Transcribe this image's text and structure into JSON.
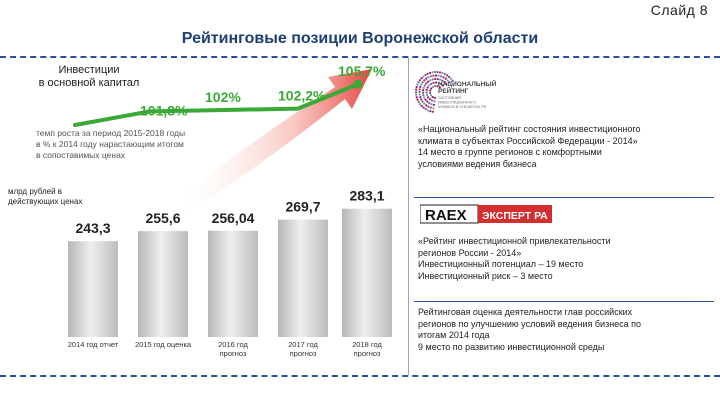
{
  "slide": {
    "number_label": "Слайд 8"
  },
  "title": "Рейтинговые позиции Воронежской области",
  "investment": {
    "label": "Инвестиции\nв основной капитал",
    "growth_note": "темп роста за период 2015-2018 годы\nв % к 2014 году нарастающим итогом\nв сопоставимых ценах",
    "unit_note": "млрд рублей        в\nдействующих ценах"
  },
  "chart_data": [
    {
      "type": "line",
      "categories": [
        "2015",
        "2016",
        "2017",
        "2018"
      ],
      "values": [
        101.8,
        102,
        102.2,
        105.7
      ],
      "value_labels": [
        "101,8%",
        "102%",
        "102,2%",
        "105,7%"
      ],
      "color": "#3aa935"
    },
    {
      "type": "bar",
      "categories": [
        "2014 год отчет",
        "2015 год оценка",
        "2016 год\nпрогноз",
        "2017 год\nпрогноз",
        "2018 год\nпрогноз"
      ],
      "values": [
        243.3,
        255.6,
        256.04,
        269.7,
        283.1
      ],
      "value_labels": [
        "243,3",
        "255,6",
        "256,04",
        "269,7",
        "283,1"
      ],
      "color": "#c8c8c8"
    }
  ],
  "logos": {
    "national_rating": {
      "lines": [
        "НАЦИОНАЛЬНЫЙ",
        "РЕЙТИНГ",
        "СОСТОЯНИЯ",
        "ИНВЕСТИЦИОННОГО",
        "КЛИМАТА В СУБЪЕКТАХ РФ"
      ]
    },
    "raex": {
      "text1": "RAEX",
      "text2": "ЭКСПЕРТ РА"
    }
  },
  "ratings": [
    {
      "text": "«Национальный рейтинг состояния инвестиционного\nклимата в субъектах Российской Федерации - 2014»\n14 место в группе регионов с комфортными\nусловиями ведения бизнеса"
    },
    {
      "text": "«Рейтинг инвестиционной привлекательности\nрегионов России - 2014»\nИнвестиционный потенциал – 19 место\nИнвестиционный риск – 3 место"
    },
    {
      "text": "Рейтинговая оценка деятельности глав российских\nрегионов по улучшению условий ведения бизнеса по\nитогам 2014 года\n 9 место по развитию инвестиционной среды"
    }
  ],
  "colors": {
    "accent": "#3aa935",
    "title": "#1f3f73",
    "divider": "#2b4f9c",
    "bar": "#c8c8c8",
    "arrow": "#e53935"
  }
}
